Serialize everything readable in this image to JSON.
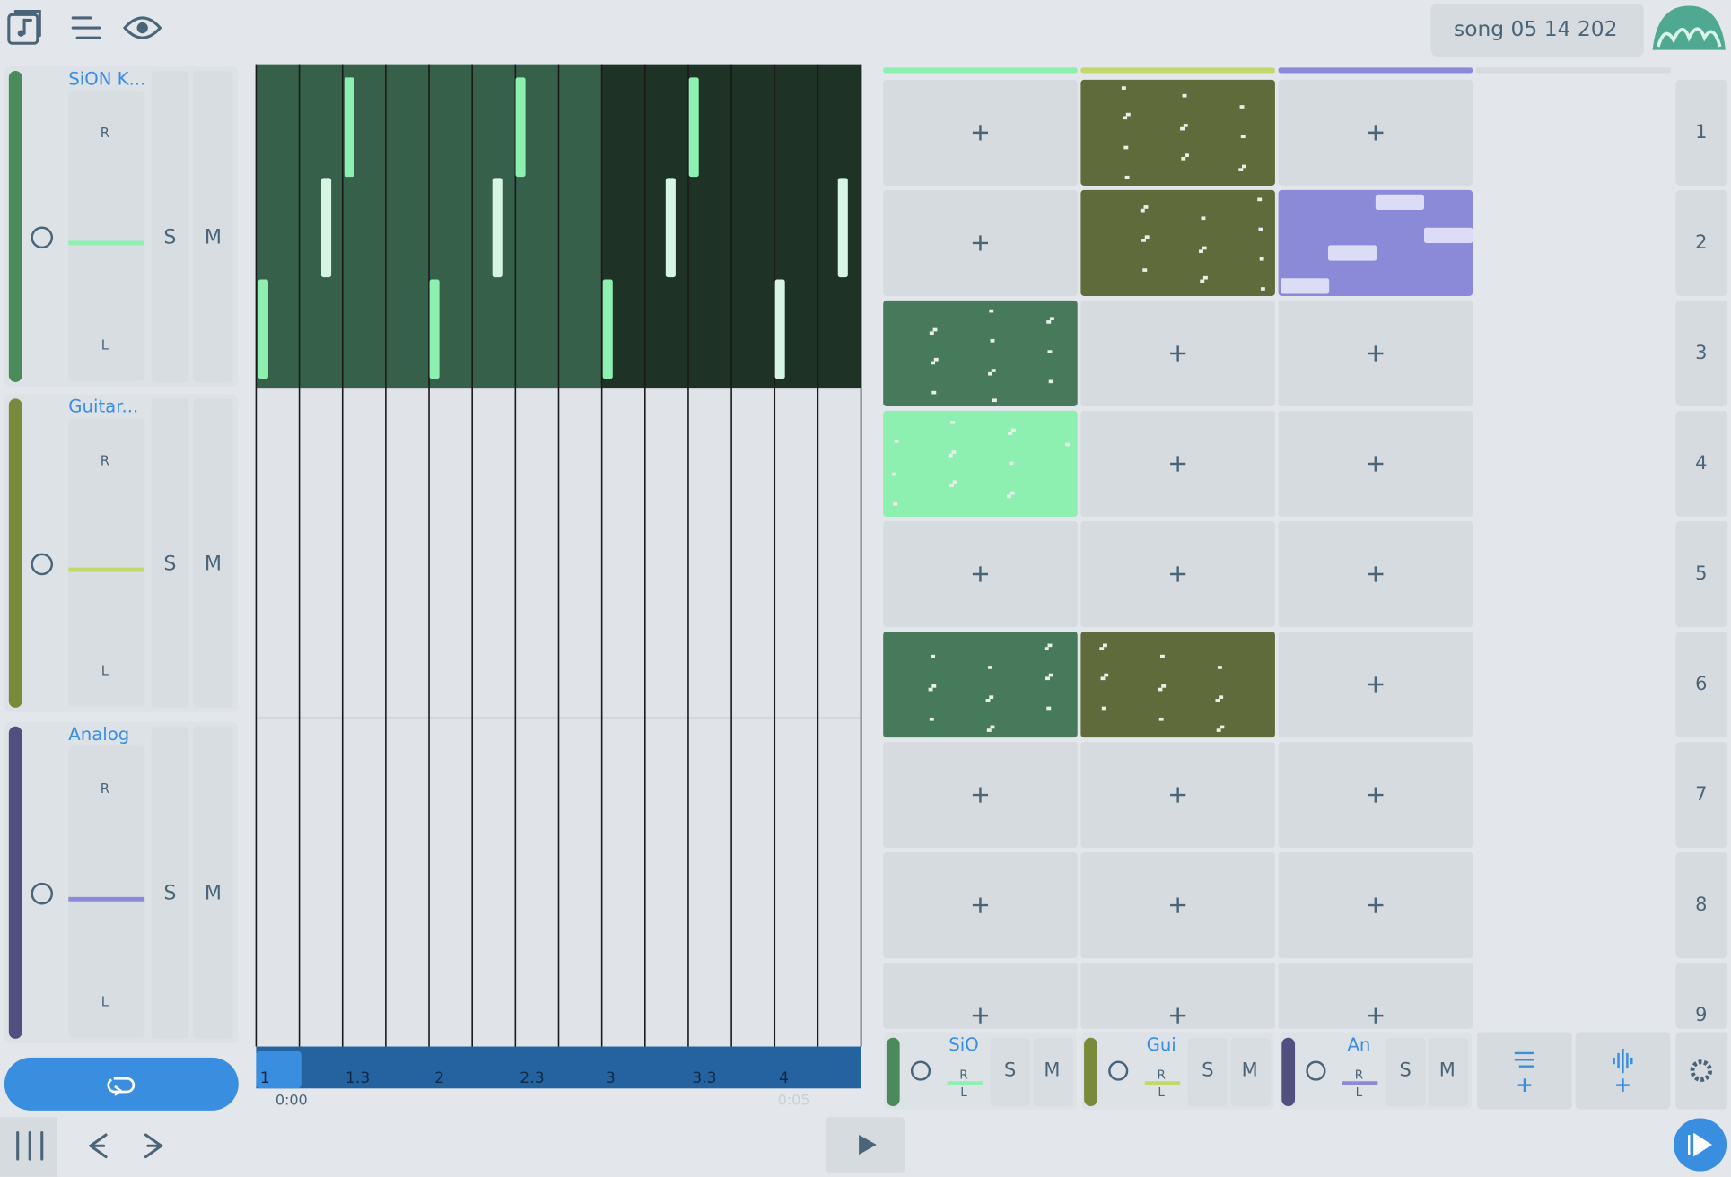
{
  "header": {
    "song_title": "song 05 14 202"
  },
  "tracks": [
    {
      "name": "SiON K...",
      "short": "SiO",
      "pan_right": "R",
      "pan_left": "L",
      "solo": "S",
      "mute": "M"
    },
    {
      "name": "Guitar...",
      "short": "Gui",
      "pan_right": "R",
      "pan_left": "L",
      "solo": "S",
      "mute": "M"
    },
    {
      "name": "Analog",
      "short": "An",
      "pan_right": "R",
      "pan_left": "L",
      "solo": "S",
      "mute": "M"
    }
  ],
  "timeline": {
    "markers": [
      "1",
      "1.3",
      "2",
      "2.3",
      "3",
      "3.3",
      "4"
    ],
    "time_start": "0:00",
    "time_end": "0:05"
  },
  "scenes": [
    "1",
    "2",
    "3",
    "4",
    "5",
    "6",
    "7",
    "8",
    "9"
  ]
}
